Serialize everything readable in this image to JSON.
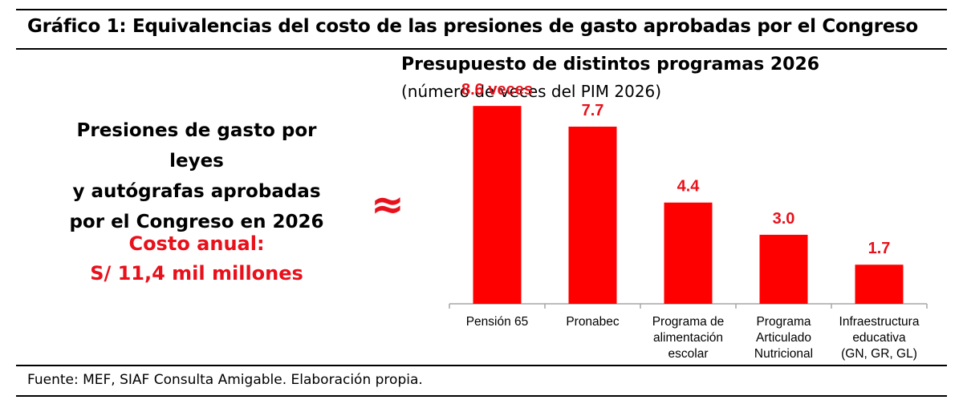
{
  "header": {
    "title": "Gráfico 1: Equivalencias del costo de las presiones de gasto aprobadas por el Congreso"
  },
  "left_panel": {
    "pressure_lines": [
      "Presiones de gasto por leyes",
      "y autógrafas aprobadas",
      "por el Congreso en 2026"
    ],
    "cost_lines": [
      "Costo anual:",
      "S/ 11,4 mil millones"
    ],
    "approx_symbol": "≈"
  },
  "footer": {
    "source": "Fuente: MEF, SIAF Consulta Amigable. Elaboración propia."
  },
  "colors": {
    "bar": "#ff0000",
    "label": "#e8101a",
    "axis": "#a6a6a6"
  },
  "chart_data": {
    "type": "bar",
    "title": "Presupuesto de distintos programas 2026",
    "subtitle": "(número de veces del PIM 2026)",
    "categories": [
      [
        "Pensión 65"
      ],
      [
        "Pronabec"
      ],
      [
        "Programa de",
        "alimentación",
        "escolar"
      ],
      [
        "Programa",
        "Articulado",
        "Nutricional"
      ],
      [
        "Infraestructura",
        "educativa",
        "(GN, GR, GL)"
      ]
    ],
    "values": [
      8.6,
      7.7,
      4.4,
      3.0,
      1.7
    ],
    "data_labels": [
      "8.6 veces",
      "7.7",
      "4.4",
      "3.0",
      "1.7"
    ],
    "ylim": [
      0,
      10
    ],
    "grid": false,
    "legend": "none"
  }
}
